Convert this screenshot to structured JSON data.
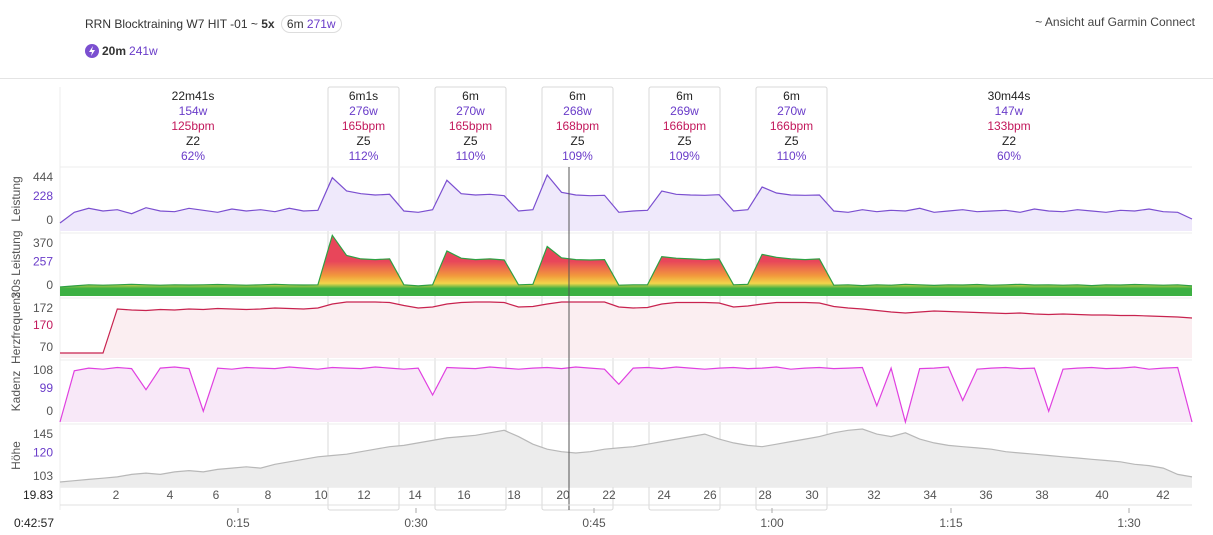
{
  "header": {
    "title": "RRN Blocktraining W7 HIT -01 ~",
    "sets": "5x",
    "pill_duration": "6m",
    "pill_power": "271w",
    "sub_duration": "20m",
    "sub_power": "241w",
    "link": "~ Ansicht auf Garmin Connect"
  },
  "intervals": [
    {
      "duration": "22m41s",
      "power": "154w",
      "hr": "125bpm",
      "zone": "Z2",
      "percent": "62%"
    },
    {
      "duration": "6m1s",
      "power": "276w",
      "hr": "165bpm",
      "zone": "Z5",
      "percent": "112%"
    },
    {
      "duration": "6m",
      "power": "270w",
      "hr": "165bpm",
      "zone": "Z5",
      "percent": "110%"
    },
    {
      "duration": "6m",
      "power": "268w",
      "hr": "168bpm",
      "zone": "Z5",
      "percent": "109%"
    },
    {
      "duration": "6m",
      "power": "269w",
      "hr": "166bpm",
      "zone": "Z5",
      "percent": "109%"
    },
    {
      "duration": "6m",
      "power": "270w",
      "hr": "166bpm",
      "zone": "Z5",
      "percent": "110%"
    },
    {
      "duration": "30m44s",
      "power": "147w",
      "hr": "133bpm",
      "zone": "Z2",
      "percent": "60%"
    }
  ],
  "panels": [
    {
      "name": "Leistung",
      "labels": [
        "444",
        "228",
        "0"
      ],
      "ylim": [
        0,
        480
      ],
      "color": "#7b4fd0",
      "fill": "#efe9fb",
      "values": [
        60,
        140,
        170,
        150,
        160,
        130,
        175,
        150,
        145,
        170,
        155,
        140,
        165,
        150,
        160,
        145,
        170,
        150,
        155,
        400,
        300,
        280,
        270,
        275,
        150,
        140,
        160,
        380,
        280,
        270,
        275,
        265,
        150,
        160,
        420,
        290,
        270,
        265,
        268,
        140,
        150,
        155,
        300,
        275,
        270,
        268,
        272,
        150,
        160,
        330,
        285,
        270,
        268,
        270,
        150,
        140,
        160,
        145,
        155,
        150,
        170,
        140,
        150,
        160,
        145,
        150,
        155,
        140,
        165,
        150,
        145,
        160,
        150,
        140,
        155,
        150,
        165,
        145,
        140,
        90
      ]
    },
    {
      "name": "30s Leistung",
      "labels": [
        "370",
        "257",
        "0"
      ],
      "ylim": [
        100,
        380
      ],
      "color": "#2ea043",
      "fill": "zones",
      "zone_colors": [
        "#3cb043",
        "#f2d54b",
        "#f29a3c",
        "#e8465a"
      ],
      "values": [
        140,
        145,
        150,
        148,
        150,
        152,
        150,
        148,
        150,
        149,
        150,
        151,
        150,
        148,
        150,
        152,
        150,
        149,
        150,
        370,
        280,
        265,
        262,
        265,
        150,
        145,
        150,
        300,
        268,
        262,
        265,
        260,
        150,
        152,
        320,
        270,
        262,
        260,
        262,
        148,
        150,
        150,
        275,
        268,
        265,
        262,
        265,
        150,
        152,
        285,
        272,
        265,
        262,
        265,
        148,
        150,
        146,
        150,
        148,
        152,
        150,
        147,
        150,
        149,
        151,
        148,
        150,
        152,
        149,
        150,
        148,
        150,
        146,
        150,
        149,
        151,
        150,
        148,
        150,
        145
      ]
    },
    {
      "name": "Herzfrequenz",
      "labels": [
        "172",
        "170",
        "70"
      ],
      "ylim": [
        60,
        180
      ],
      "color": "#c8234f",
      "fill": "#fbeef1",
      "values": [
        70,
        70,
        70,
        70,
        158,
        156,
        155,
        157,
        156,
        158,
        157,
        159,
        158,
        157,
        158,
        160,
        159,
        158,
        160,
        168,
        172,
        172,
        172,
        171,
        165,
        160,
        162,
        168,
        171,
        172,
        172,
        171,
        162,
        163,
        168,
        172,
        172,
        172,
        172,
        162,
        160,
        161,
        168,
        171,
        171,
        171,
        170,
        162,
        164,
        168,
        171,
        171,
        171,
        170,
        163,
        160,
        158,
        155,
        152,
        150,
        152,
        154,
        153,
        152,
        151,
        150,
        149,
        150,
        148,
        147,
        148,
        147,
        146,
        146,
        145,
        145,
        144,
        143,
        142,
        140
      ]
    },
    {
      "name": "Kadenz",
      "labels": [
        "108",
        "99",
        "0"
      ],
      "ylim": [
        0,
        115
      ],
      "color": "#e040e0",
      "fill": "#f8e8f8",
      "values": [
        0,
        95,
        100,
        98,
        101,
        99,
        60,
        100,
        102,
        99,
        20,
        100,
        98,
        101,
        100,
        99,
        102,
        100,
        98,
        101,
        100,
        99,
        102,
        100,
        98,
        100,
        50,
        101,
        100,
        99,
        102,
        100,
        98,
        100,
        101,
        99,
        102,
        100,
        98,
        70,
        100,
        101,
        99,
        102,
        100,
        98,
        100,
        101,
        99,
        100,
        102,
        98,
        100,
        101,
        99,
        100,
        101,
        30,
        100,
        0,
        99,
        100,
        102,
        40,
        98,
        100,
        101,
        99,
        100,
        20,
        98,
        100,
        101,
        99,
        100,
        102,
        98,
        100,
        101,
        0
      ]
    },
    {
      "name": "Höhe",
      "labels": [
        "145",
        "120",
        "103"
      ],
      "ylim": [
        100,
        150
      ],
      "color": "#b8b8b8",
      "fill": "#ececec",
      "values": [
        104,
        105,
        106,
        107,
        108,
        110,
        111,
        110,
        112,
        113,
        112,
        114,
        115,
        116,
        115,
        118,
        120,
        122,
        124,
        125,
        126,
        128,
        130,
        132,
        133,
        135,
        137,
        139,
        140,
        141,
        143,
        145,
        140,
        134,
        130,
        128,
        127,
        128,
        130,
        131,
        132,
        134,
        136,
        138,
        140,
        142,
        138,
        135,
        133,
        132,
        134,
        136,
        138,
        140,
        143,
        145,
        146,
        142,
        140,
        143,
        138,
        135,
        133,
        132,
        131,
        130,
        128,
        127,
        126,
        125,
        124,
        123,
        122,
        121,
        120,
        118,
        117,
        115,
        110,
        108
      ]
    }
  ],
  "km_labels": [
    "19.83",
    "2",
    "4",
    "6",
    "8",
    "10",
    "12",
    "14",
    "16",
    "18",
    "20",
    "22",
    "24",
    "26",
    "28",
    "30",
    "32",
    "34",
    "36",
    "38",
    "40",
    "42"
  ],
  "time_labels": [
    "0:42:57",
    "0:15",
    "0:30",
    "0:45",
    "1:00",
    "1:15",
    "1:30"
  ]
}
